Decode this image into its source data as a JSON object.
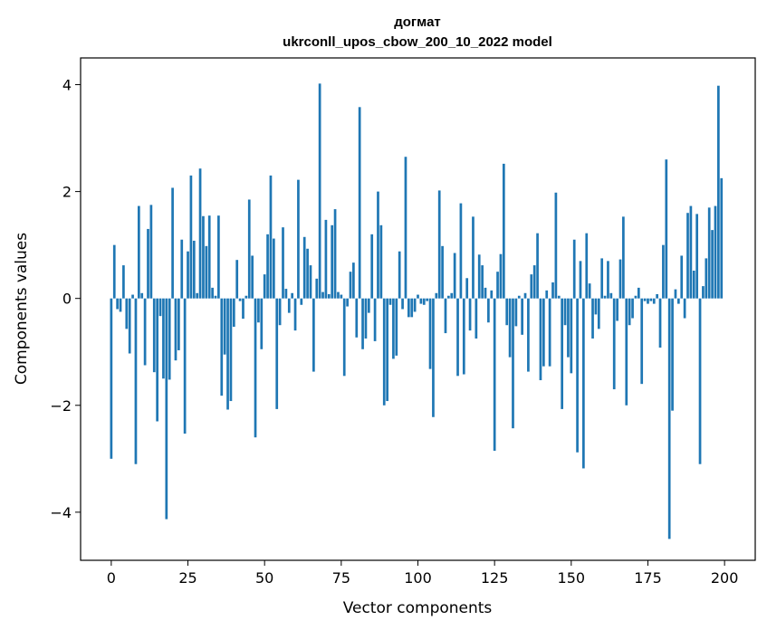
{
  "chart_data": {
    "type": "bar",
    "title_line1": "догмат",
    "title_line2": "ukrconll_upos_cbow_200_10_2022 model",
    "xlabel": "Vector components",
    "ylabel": "Components values",
    "xlim": [
      -10,
      210
    ],
    "ylim": [
      -4.9,
      4.5
    ],
    "xticks": [
      0,
      25,
      50,
      75,
      100,
      125,
      150,
      175,
      200
    ],
    "xtick_labels": [
      "0",
      "25",
      "50",
      "75",
      "100",
      "125",
      "150",
      "175",
      "200"
    ],
    "yticks": [
      -4,
      -2,
      0,
      2,
      4
    ],
    "ytick_labels": [
      "−4",
      "−2",
      "0",
      "2",
      "4"
    ],
    "grid": false,
    "bar_color": "#1f77b4",
    "values": [
      -3.0,
      1.0,
      -0.2,
      -0.25,
      0.62,
      -0.57,
      -1.03,
      0.07,
      -3.1,
      1.73,
      0.1,
      -1.25,
      1.3,
      1.75,
      -1.38,
      -2.3,
      -0.33,
      -1.5,
      -4.13,
      -1.52,
      2.07,
      -1.16,
      -0.97,
      1.1,
      -2.53,
      0.88,
      2.3,
      1.08,
      0.1,
      2.43,
      1.54,
      0.98,
      1.55,
      0.2,
      0.05,
      1.55,
      -1.82,
      -1.05,
      -2.08,
      -1.92,
      -0.53,
      0.72,
      -0.05,
      -0.38,
      0.05,
      1.85,
      0.8,
      -2.6,
      -0.45,
      -0.95,
      0.45,
      1.2,
      2.3,
      1.12,
      -2.07,
      -0.5,
      1.33,
      0.18,
      -0.27,
      0.1,
      -0.6,
      2.22,
      -0.12,
      1.15,
      0.93,
      0.62,
      -1.37,
      0.37,
      4.02,
      0.12,
      1.47,
      0.08,
      1.37,
      1.67,
      0.12,
      0.07,
      -1.45,
      -0.15,
      0.5,
      0.67,
      -0.73,
      3.58,
      -0.95,
      -0.75,
      -0.27,
      1.2,
      -0.8,
      2.0,
      1.37,
      -2.0,
      -1.92,
      -0.12,
      -1.13,
      -1.07,
      0.88,
      -0.2,
      2.65,
      -0.35,
      -0.35,
      -0.25,
      0.07,
      -0.1,
      -0.12,
      -0.05,
      -1.32,
      -2.22,
      0.1,
      2.02,
      0.98,
      -0.65,
      0.05,
      0.1,
      0.85,
      -1.45,
      1.78,
      -1.42,
      0.38,
      -0.6,
      1.53,
      -0.75,
      0.82,
      0.62,
      0.2,
      -0.45,
      0.15,
      -2.85,
      0.5,
      0.83,
      2.52,
      -0.5,
      -1.1,
      -2.43,
      -0.52,
      0.05,
      -0.68,
      0.1,
      -1.37,
      0.45,
      0.62,
      1.22,
      -1.53,
      -1.27,
      0.15,
      -1.27,
      0.3,
      1.98,
      0.05,
      -2.07,
      -0.5,
      -1.1,
      -1.4,
      1.1,
      -2.88,
      0.7,
      -3.18,
      1.22,
      0.28,
      -0.75,
      -0.3,
      -0.57,
      0.75,
      0.05,
      0.7,
      0.1,
      -1.7,
      -0.42,
      0.73,
      1.53,
      -2.0,
      -0.5,
      -0.37,
      0.05,
      0.2,
      -1.6,
      -0.05,
      -0.1,
      -0.05,
      -0.1,
      0.08,
      -0.92,
      1.0,
      2.6,
      -4.5,
      -2.1,
      0.17,
      -0.1,
      0.8,
      -0.37,
      1.6,
      1.73,
      0.52,
      1.58,
      -3.1,
      0.23,
      0.75,
      1.7,
      1.28,
      1.73,
      3.98,
      2.25
    ]
  }
}
